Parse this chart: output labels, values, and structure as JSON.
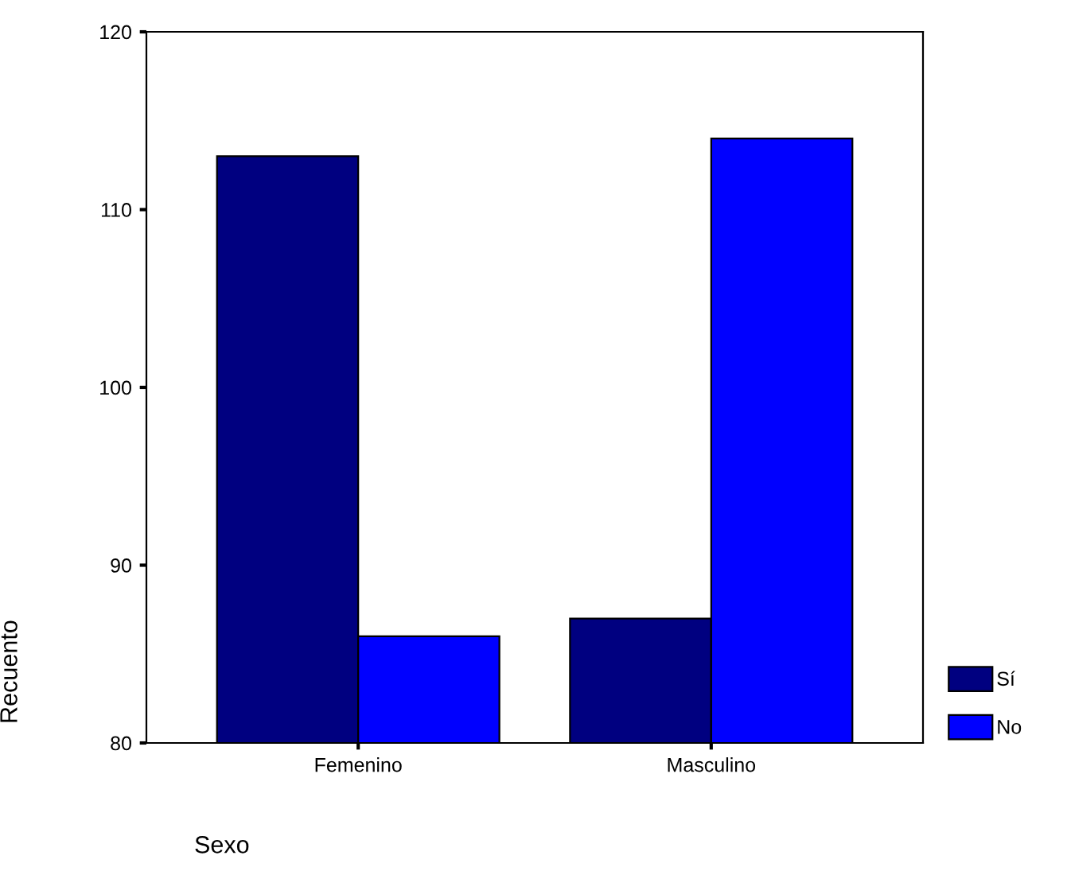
{
  "chart_data": {
    "type": "bar",
    "xlabel": "Sexo",
    "ylabel": "Recuento",
    "categories": [
      "Femenino",
      "Masculino"
    ],
    "series": [
      {
        "name": "Sí",
        "color": "#000080",
        "values": [
          113,
          87
        ]
      },
      {
        "name": "No",
        "color": "#0000ff",
        "values": [
          86,
          114
        ]
      }
    ],
    "ylim": [
      80,
      120
    ],
    "yticks": [
      80,
      90,
      100,
      110,
      120
    ],
    "grid": false,
    "legend": "bottom right"
  }
}
